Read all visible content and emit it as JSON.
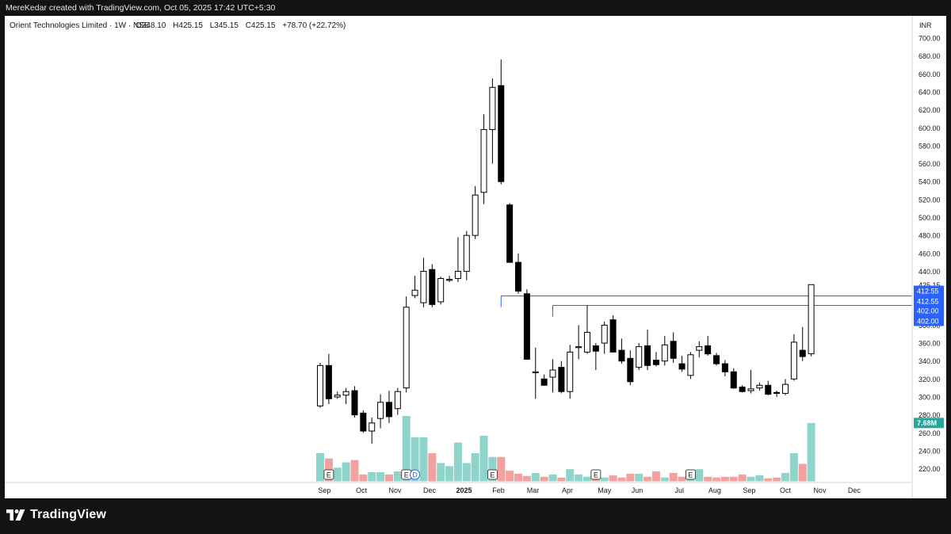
{
  "header": {
    "credit": "MereKedar created with TradingView.com, Oct 05, 2025 17:42 UTC+5:30"
  },
  "footer": {
    "brand": "TradingView"
  },
  "colors": {
    "up_volume": "#8fd4ca",
    "down_volume": "#f2a0a0",
    "marker_line": "#2962ff",
    "price_tag": "#2962ff",
    "volume_tag": "#26a69a"
  },
  "chart_data": {
    "type": "candlestick",
    "title": "Orient Technologies Limited · 1W · NSE",
    "legend": {
      "open": "O348.10",
      "high": "H425.15",
      "low": "L345.15",
      "close": "C425.15",
      "change": "+78.70 (+22.72%)"
    },
    "currency": "INR",
    "y_axis": {
      "min": 205,
      "max": 710,
      "ticks": [
        "220.00",
        "240.00",
        "260.00",
        "280.00",
        "300.00",
        "320.00",
        "340.00",
        "360.00",
        "380.00",
        "400.00",
        "420.00",
        "440.00",
        "460.00",
        "480.00",
        "500.00",
        "520.00",
        "540.00",
        "560.00",
        "580.00",
        "600.00",
        "620.00",
        "640.00",
        "660.00",
        "680.00",
        "700.00"
      ]
    },
    "x_axis": {
      "labels": [
        "Sep",
        "Oct",
        "Nov",
        "Dec",
        "2025",
        "Feb",
        "Mar",
        "Apr",
        "May",
        "Jun",
        "Jul",
        "Aug",
        "Sep",
        "Oct",
        "Nov",
        "Dec"
      ],
      "label_weeks": [
        0.5,
        4.8,
        8.7,
        12.7,
        16.7,
        20.7,
        24.7,
        28.7,
        33.0,
        36.8,
        41.7,
        45.8,
        49.8,
        54.0,
        58.0,
        62.0
      ]
    },
    "candles": [
      {
        "o": 290,
        "h": 338,
        "l": 288,
        "c": 335
      },
      {
        "o": 335,
        "h": 348,
        "l": 292,
        "c": 298
      },
      {
        "o": 300,
        "h": 306,
        "l": 298,
        "c": 302
      },
      {
        "o": 302,
        "h": 310,
        "l": 292,
        "c": 306
      },
      {
        "o": 307,
        "h": 312,
        "l": 277,
        "c": 280
      },
      {
        "o": 282,
        "h": 285,
        "l": 260,
        "c": 262
      },
      {
        "o": 262,
        "h": 277,
        "l": 248,
        "c": 271
      },
      {
        "o": 276,
        "h": 303,
        "l": 265,
        "c": 294
      },
      {
        "o": 294,
        "h": 307,
        "l": 271,
        "c": 278
      },
      {
        "o": 287,
        "h": 310,
        "l": 280,
        "c": 306
      },
      {
        "o": 310,
        "h": 412,
        "l": 305,
        "c": 400
      },
      {
        "o": 413,
        "h": 435,
        "l": 410,
        "c": 419
      },
      {
        "o": 405,
        "h": 455,
        "l": 400,
        "c": 440
      },
      {
        "o": 442,
        "h": 448,
        "l": 400,
        "c": 403
      },
      {
        "o": 406,
        "h": 434,
        "l": 403,
        "c": 432
      },
      {
        "o": 430,
        "h": 435,
        "l": 428,
        "c": 431
      },
      {
        "o": 432,
        "h": 478,
        "l": 428,
        "c": 440
      },
      {
        "o": 440,
        "h": 485,
        "l": 430,
        "c": 480
      },
      {
        "o": 480,
        "h": 535,
        "l": 476,
        "c": 525
      },
      {
        "o": 528,
        "h": 615,
        "l": 515,
        "c": 598
      },
      {
        "o": 598,
        "h": 655,
        "l": 560,
        "c": 645
      },
      {
        "o": 647,
        "h": 676,
        "l": 537,
        "c": 540
      },
      {
        "o": 514,
        "h": 516,
        "l": 450,
        "c": 450
      },
      {
        "o": 450,
        "h": 460,
        "l": 415,
        "c": 418
      },
      {
        "o": 415,
        "h": 420,
        "l": 342,
        "c": 342
      },
      {
        "o": 327,
        "h": 355,
        "l": 298,
        "c": 328
      },
      {
        "o": 320,
        "h": 325,
        "l": 313,
        "c": 313
      },
      {
        "o": 322,
        "h": 342,
        "l": 305,
        "c": 330
      },
      {
        "o": 333,
        "h": 340,
        "l": 304,
        "c": 306
      },
      {
        "o": 306,
        "h": 358,
        "l": 298,
        "c": 350
      },
      {
        "o": 355,
        "h": 380,
        "l": 342,
        "c": 356
      },
      {
        "o": 350,
        "h": 402,
        "l": 348,
        "c": 372
      },
      {
        "o": 357,
        "h": 360,
        "l": 330,
        "c": 351
      },
      {
        "o": 360,
        "h": 384,
        "l": 348,
        "c": 380
      },
      {
        "o": 386,
        "h": 391,
        "l": 350,
        "c": 350
      },
      {
        "o": 352,
        "h": 365,
        "l": 337,
        "c": 340
      },
      {
        "o": 343,
        "h": 352,
        "l": 313,
        "c": 317
      },
      {
        "o": 333,
        "h": 360,
        "l": 330,
        "c": 356
      },
      {
        "o": 357,
        "h": 375,
        "l": 330,
        "c": 335
      },
      {
        "o": 341,
        "h": 350,
        "l": 334,
        "c": 336
      },
      {
        "o": 340,
        "h": 368,
        "l": 335,
        "c": 358
      },
      {
        "o": 362,
        "h": 372,
        "l": 338,
        "c": 343
      },
      {
        "o": 337,
        "h": 346,
        "l": 328,
        "c": 331
      },
      {
        "o": 324,
        "h": 350,
        "l": 320,
        "c": 347
      },
      {
        "o": 352,
        "h": 362,
        "l": 344,
        "c": 356
      },
      {
        "o": 357,
        "h": 368,
        "l": 346,
        "c": 348
      },
      {
        "o": 346,
        "h": 349,
        "l": 335,
        "c": 337
      },
      {
        "o": 337,
        "h": 341,
        "l": 323,
        "c": 328
      },
      {
        "o": 328,
        "h": 332,
        "l": 309,
        "c": 310
      },
      {
        "o": 311,
        "h": 313,
        "l": 305,
        "c": 306
      },
      {
        "o": 307,
        "h": 330,
        "l": 304,
        "c": 309
      },
      {
        "o": 310,
        "h": 316,
        "l": 307,
        "c": 313
      },
      {
        "o": 313,
        "h": 318,
        "l": 302,
        "c": 303
      },
      {
        "o": 305,
        "h": 307,
        "l": 300,
        "c": 304
      },
      {
        "o": 304,
        "h": 320,
        "l": 302,
        "c": 314
      },
      {
        "o": 320,
        "h": 370,
        "l": 318,
        "c": 361
      },
      {
        "o": 352,
        "h": 378,
        "l": 340,
        "c": 345
      },
      {
        "o": 348.1,
        "h": 425.15,
        "l": 345.15,
        "c": 425.15
      }
    ],
    "volume_scale_max": 8.55,
    "volume": [
      3.7,
      3.0,
      1.8,
      2.5,
      2.8,
      0.9,
      1.2,
      1.2,
      0.9,
      1.3,
      8.6,
      5.8,
      5.8,
      3.7,
      2.4,
      2.0,
      5.1,
      2.4,
      3.7,
      6.0,
      3.2,
      3.2,
      1.4,
      1.0,
      0.7,
      1.1,
      0.6,
      0.9,
      0.5,
      1.6,
      0.9,
      0.6,
      0.7,
      0.5,
      0.8,
      0.5,
      1.0,
      1.0,
      0.6,
      1.3,
      0.5,
      1.1,
      0.6,
      0.9,
      1.6,
      0.6,
      0.5,
      0.6,
      0.6,
      0.9,
      0.6,
      0.8,
      0.4,
      0.5,
      1.1,
      3.7,
      2.3,
      7.68
    ],
    "volume_last_label": "7.68M",
    "earnings_markers": [
      {
        "label": "E",
        "week": 1
      },
      {
        "label": "E",
        "week": 10
      },
      {
        "label": "E",
        "week": 20
      },
      {
        "label": "E",
        "week": 32
      },
      {
        "label": "E",
        "week": 43
      }
    ],
    "dividend_markers": [
      {
        "label": "D",
        "week": 11
      }
    ],
    "horizontal_lines": [
      {
        "value": 412.55,
        "from_week": 21
      },
      {
        "value": 402.0,
        "from_week": 27
      }
    ],
    "price_labels": {
      "current": "425.15",
      "level1_a": "412.55",
      "level1_b": "412.55",
      "level2_a": "402.00",
      "level2_b": "402.00"
    }
  }
}
